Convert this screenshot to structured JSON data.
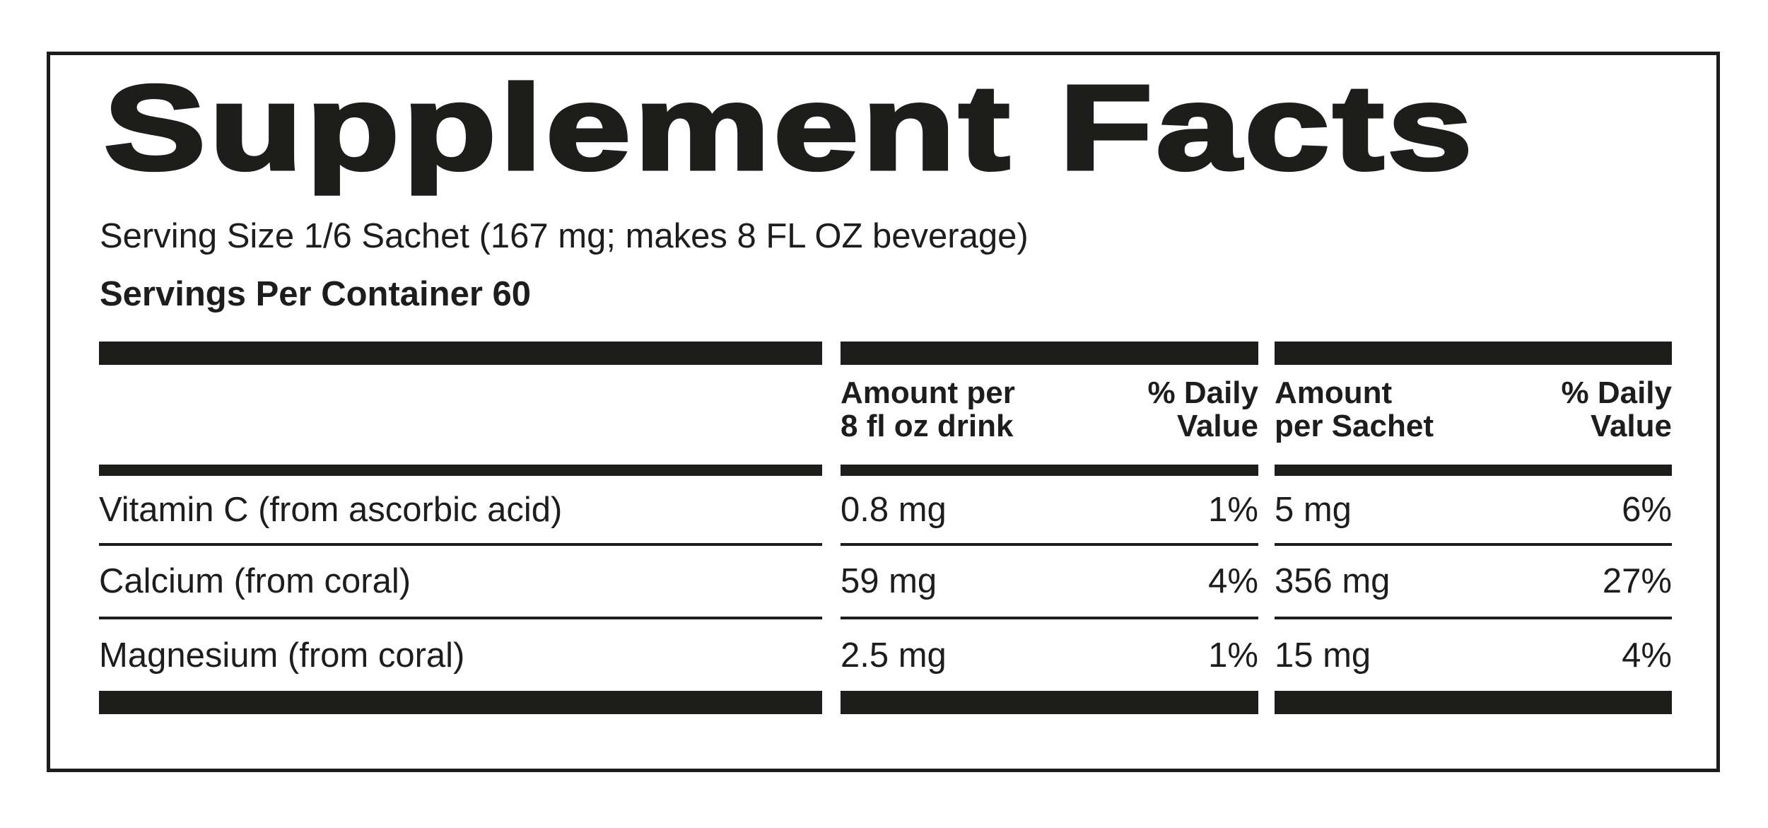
{
  "label": {
    "title": "Supplement Facts",
    "serving_size_line": "Serving Size 1/6 Sachet (167 mg; makes 8 FL OZ beverage)",
    "servings_per_container_line": "Servings Per Container 60",
    "colors": {
      "ink": "#1d1d1b",
      "background": "#ffffff"
    },
    "table": {
      "headers": {
        "amount_per_drink": "Amount per\n8 fl oz drink",
        "daily_value_drink": "% Daily\nValue",
        "amount_per_sachet": "Amount\nper Sachet",
        "daily_value_sachet": "% Daily\nValue"
      },
      "rows": [
        {
          "name": "Vitamin C (from ascorbic acid)",
          "amount_per_drink": "0.8 mg",
          "daily_value_drink": "1%",
          "amount_per_sachet": "5 mg",
          "daily_value_sachet": "6%"
        },
        {
          "name": "Calcium (from coral)",
          "amount_per_drink": "59 mg",
          "daily_value_drink": "4%",
          "amount_per_sachet": "356 mg",
          "daily_value_sachet": "27%"
        },
        {
          "name": "Magnesium (from coral)",
          "amount_per_drink": "2.5 mg",
          "daily_value_drink": "1%",
          "amount_per_sachet": "15 mg",
          "daily_value_sachet": "4%"
        }
      ]
    }
  }
}
